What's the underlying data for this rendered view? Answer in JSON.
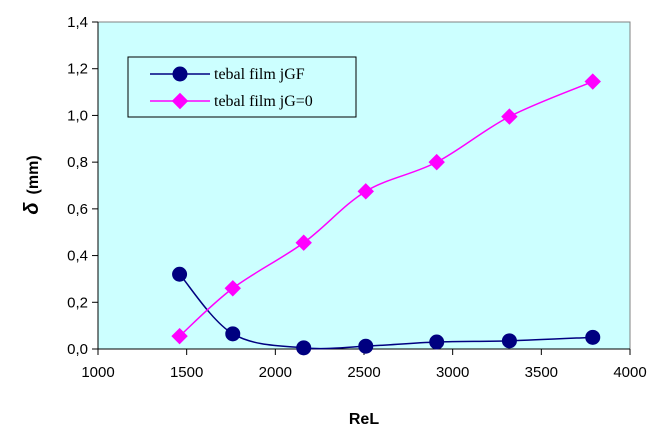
{
  "chart_data": {
    "type": "line",
    "title": "",
    "xlabel": "ReL",
    "ylabel": "δ (mm)",
    "ylabel_symbol": "δ",
    "ylabel_unit": "(mm)",
    "xlim": [
      1000,
      4000
    ],
    "ylim": [
      0,
      1.4
    ],
    "x_ticks": [
      1000,
      1500,
      2000,
      2500,
      3000,
      3500,
      4000
    ],
    "x_tick_labels": [
      "1000",
      "1500",
      "2000",
      "2500",
      "3000",
      "3500",
      "4000"
    ],
    "y_ticks": [
      0,
      0.2,
      0.4,
      0.6,
      0.8,
      1.0,
      1.2,
      1.4
    ],
    "y_tick_labels": [
      "0,0",
      "0,2",
      "0,4",
      "0,6",
      "0,8",
      "1,0",
      "1,2",
      "1,4"
    ],
    "grid": false,
    "legend_position": "top-left",
    "plot_background": "#ccffff",
    "series": [
      {
        "name": "tebal film jGF",
        "color": "#000080",
        "marker": "circle",
        "x": [
          1460,
          1760,
          2160,
          2510,
          2910,
          3320,
          3790
        ],
        "y": [
          0.32,
          0.065,
          0.005,
          0.012,
          0.03,
          0.035,
          0.05
        ]
      },
      {
        "name": "tebal film jG=0",
        "color": "#ff00ff",
        "marker": "diamond",
        "x": [
          1460,
          1760,
          2160,
          2510,
          2910,
          3320,
          3790
        ],
        "y": [
          0.055,
          0.26,
          0.455,
          0.675,
          0.8,
          0.995,
          1.145
        ]
      }
    ]
  }
}
